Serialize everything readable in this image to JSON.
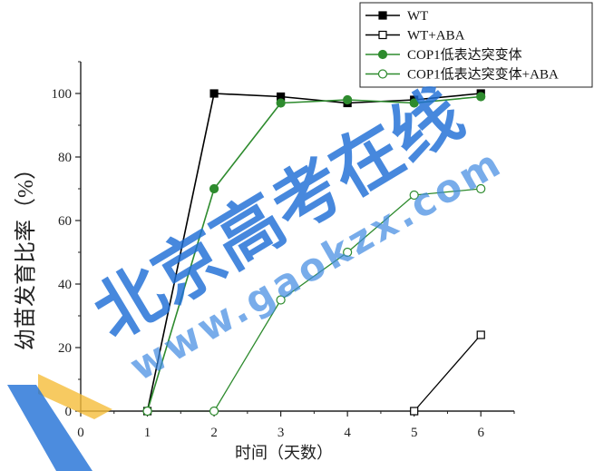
{
  "chart_data": {
    "type": "line",
    "xlabel": "时间（天数）",
    "ylabel": "幼苗发育比率（%）",
    "xlim": [
      0,
      6.5
    ],
    "ylim": [
      0,
      110
    ],
    "xticks": [
      0,
      1,
      2,
      3,
      4,
      5,
      6
    ],
    "yticks": [
      0,
      20,
      40,
      60,
      80,
      100
    ],
    "grid": false,
    "legend_position": "top-right",
    "series": [
      {
        "name": "WT",
        "x": [
          1,
          2,
          3,
          4,
          5,
          6
        ],
        "values": [
          0,
          100,
          99,
          97,
          98,
          100
        ],
        "color": "#000000",
        "marker": "filled-square"
      },
      {
        "name": "WT+ABA",
        "x": [
          5,
          6
        ],
        "values": [
          0,
          24
        ],
        "color": "#000000",
        "marker": "open-square"
      },
      {
        "name": "COP1低表达突变体",
        "x": [
          1,
          2,
          3,
          4,
          5,
          6
        ],
        "values": [
          0,
          70,
          97,
          98,
          97,
          99
        ],
        "color": "#2e8b2e",
        "marker": "filled-circle"
      },
      {
        "name": "COP1低表达突变体+ABA",
        "x": [
          1,
          2,
          3,
          4,
          5,
          6
        ],
        "values": [
          0,
          0,
          35,
          50,
          68,
          70
        ],
        "color": "#2e8b2e",
        "marker": "open-circle"
      }
    ]
  },
  "watermark": {
    "text": "北京高考在线",
    "url": "www.gaokzx.com",
    "color": "#1f6fd6",
    "url_color": "#3f8ae2",
    "accent_color": "#f5bd3a"
  }
}
